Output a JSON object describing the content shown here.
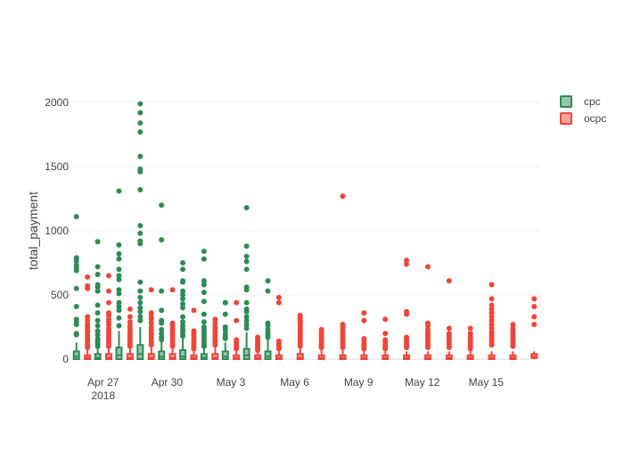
{
  "chart_data": {
    "type": "box",
    "title": "",
    "xlabel": "",
    "ylabel": "total_payment",
    "ylim": [
      0,
      2100
    ],
    "y_ticks": [
      0,
      500,
      1000,
      1500,
      2000
    ],
    "x_ticks": [
      {
        "date": "2018-04-27",
        "label": "Apr 27",
        "label2": "2018"
      },
      {
        "date": "2018-04-30",
        "label": "Apr 30",
        "label2": ""
      },
      {
        "date": "2018-05-03",
        "label": "May 3",
        "label2": ""
      },
      {
        "date": "2018-05-06",
        "label": "May 6",
        "label2": ""
      },
      {
        "date": "2018-05-09",
        "label": "May 9",
        "label2": ""
      },
      {
        "date": "2018-05-12",
        "label": "May 12",
        "label2": ""
      },
      {
        "date": "2018-05-15",
        "label": "May 15",
        "label2": ""
      }
    ],
    "x_range": [
      "2018-04-26",
      "2018-05-17"
    ],
    "grid": true,
    "legend_placement": "top-right",
    "series": [
      {
        "name": "cpc",
        "color": "#2e8b57",
        "boxes": [
          {
            "date": "2018-04-26",
            "q1": 0,
            "median": 20,
            "q3": 60,
            "whisker_low": 0,
            "whisker_high": 130,
            "outliers": [
              1110,
              790,
              780,
              760,
              730,
              710,
              690,
              550,
              410,
              310,
              290,
              270,
              200,
              190
            ]
          },
          {
            "date": "2018-04-27",
            "q1": 0,
            "median": 10,
            "q3": 40,
            "whisker_low": 0,
            "whisker_high": 90,
            "outliers": [
              915,
              720,
              660,
              580,
              560,
              530,
              420,
              360,
              300,
              260,
              220,
              190,
              160,
              140,
              120,
              100
            ]
          },
          {
            "date": "2018-04-28",
            "q1": 0,
            "median": 30,
            "q3": 90,
            "whisker_low": 0,
            "whisker_high": 220,
            "outliers": [
              1310,
              890,
              820,
              780,
              700,
              650,
              620,
              540,
              510,
              440,
              410,
              380,
              320,
              260
            ]
          },
          {
            "date": "2018-04-29",
            "q1": 0,
            "median": 40,
            "q3": 110,
            "whisker_low": 0,
            "whisker_high": 250,
            "outliers": [
              1990,
              1920,
              1840,
              1770,
              1580,
              1480,
              1460,
              1320,
              1040,
              980,
              920,
              900,
              600,
              530,
              480,
              440,
              400,
              370,
              330,
              300
            ]
          },
          {
            "date": "2018-04-30",
            "q1": 0,
            "median": 20,
            "q3": 60,
            "whisker_low": 0,
            "whisker_high": 140,
            "outliers": [
              1200,
              930,
              530,
              380,
              300,
              280,
              230,
              200,
              170,
              150
            ]
          },
          {
            "date": "2018-05-01",
            "q1": 0,
            "median": 20,
            "q3": 70,
            "whisker_low": 0,
            "whisker_high": 160,
            "outliers": [
              750,
              700,
              610,
              600,
              530,
              500,
              470,
              430,
              400,
              330,
              290,
              260,
              240,
              220,
              200,
              180
            ]
          },
          {
            "date": "2018-05-02",
            "q1": 0,
            "median": 10,
            "q3": 40,
            "whisker_low": 0,
            "whisker_high": 90,
            "outliers": [
              840,
              780,
              610,
              580,
              520,
              450,
              350,
              290,
              250,
              230,
              210,
              190,
              170,
              150,
              130,
              110,
              100
            ]
          },
          {
            "date": "2018-05-03",
            "q1": 0,
            "median": 20,
            "q3": 60,
            "whisker_low": 0,
            "whisker_high": 130,
            "outliers": [
              440,
              440,
              350,
              250,
              230,
              200,
              180,
              160
            ]
          },
          {
            "date": "2018-05-04",
            "q1": 0,
            "median": 30,
            "q3": 80,
            "whisker_low": 0,
            "whisker_high": 210,
            "outliers": [
              1180,
              880,
              800,
              760,
              700,
              560,
              540,
              440,
              390,
              370,
              330,
              300,
              270,
              240
            ]
          },
          {
            "date": "2018-05-05",
            "q1": 0,
            "median": 20,
            "q3": 60,
            "whisker_low": 0,
            "whisker_high": 150,
            "outliers": [
              610,
              530,
              280,
              260,
              230,
              210,
              190,
              170
            ]
          }
        ]
      },
      {
        "name": "ocpc",
        "color": "#f0453a",
        "boxes": [
          {
            "date": "2018-04-26",
            "q1": 0,
            "median": 10,
            "q3": 30,
            "whisker_low": 0,
            "whisker_high": 70,
            "outliers": [
              640,
              570,
              550,
              330,
              300,
              270,
              250,
              230,
              210,
              190,
              170,
              150,
              130,
              110,
              90
            ]
          },
          {
            "date": "2018-04-27",
            "q1": 0,
            "median": 10,
            "q3": 40,
            "whisker_low": 0,
            "whisker_high": 80,
            "outliers": [
              650,
              530,
              440,
              360,
              340,
              310,
              290,
              270,
              240,
              220,
              200,
              180,
              160,
              140,
              120,
              100
            ]
          },
          {
            "date": "2018-04-28",
            "q1": 0,
            "median": 10,
            "q3": 40,
            "whisker_low": 0,
            "whisker_high": 90,
            "outliers": [
              390,
              330,
              290,
              260,
              240,
              220,
              200,
              180,
              160,
              140,
              120,
              100
            ]
          },
          {
            "date": "2018-04-29",
            "q1": 0,
            "median": 10,
            "q3": 40,
            "whisker_low": 0,
            "whisker_high": 90,
            "outliers": [
              540,
              360,
              330,
              310,
              280,
              250,
              230,
              210,
              190,
              170,
              150,
              130,
              110
            ]
          },
          {
            "date": "2018-04-30",
            "q1": 0,
            "median": 10,
            "q3": 40,
            "whisker_low": 0,
            "whisker_high": 80,
            "outliers": [
              540,
              280,
              260,
              240,
              220,
              200,
              180,
              160,
              140,
              120,
              100
            ]
          },
          {
            "date": "2018-05-01",
            "q1": 0,
            "median": 10,
            "q3": 30,
            "whisker_low": 0,
            "whisker_high": 60,
            "outliers": [
              380,
              220,
              200,
              180,
              160,
              140,
              120,
              100,
              80
            ]
          },
          {
            "date": "2018-05-02",
            "q1": 0,
            "median": 10,
            "q3": 40,
            "whisker_low": 0,
            "whisker_high": 90,
            "outliers": [
              310,
              280,
              250,
              230,
              210,
              190,
              170,
              150,
              130,
              110
            ]
          },
          {
            "date": "2018-05-03",
            "q1": 0,
            "median": 10,
            "q3": 30,
            "whisker_low": 0,
            "whisker_high": 60,
            "outliers": [
              440,
              300,
              150,
              130,
              110,
              90,
              80
            ]
          },
          {
            "date": "2018-05-04",
            "q1": 0,
            "median": 10,
            "q3": 30,
            "whisker_low": 0,
            "whisker_high": 60,
            "outliers": [
              170,
              150,
              130,
              110,
              90,
              80,
              70
            ]
          },
          {
            "date": "2018-05-05",
            "q1": 0,
            "median": 10,
            "q3": 30,
            "whisker_low": 0,
            "whisker_high": 60,
            "outliers": [
              480,
              440,
              140,
              120,
              100,
              90,
              80
            ]
          },
          {
            "date": "2018-05-06",
            "q1": 0,
            "median": 10,
            "q3": 40,
            "whisker_low": 0,
            "whisker_high": 80,
            "outliers": [
              340,
              320,
              300,
              280,
              260,
              240,
              220,
              200,
              180,
              160,
              140,
              120,
              100
            ]
          },
          {
            "date": "2018-05-07",
            "q1": 0,
            "median": 10,
            "q3": 30,
            "whisker_low": 0,
            "whisker_high": 70,
            "outliers": [
              230,
              210,
              190,
              170,
              150,
              130,
              110,
              100,
              90
            ]
          },
          {
            "date": "2018-05-08",
            "q1": 0,
            "median": 10,
            "q3": 30,
            "whisker_low": 0,
            "whisker_high": 70,
            "outliers": [
              1270,
              270,
              250,
              230,
              210,
              190,
              170,
              150,
              130,
              110,
              90
            ]
          },
          {
            "date": "2018-05-09",
            "q1": 0,
            "median": 10,
            "q3": 30,
            "whisker_low": 0,
            "whisker_high": 60,
            "outliers": [
              360,
              300,
              160,
              140,
              120,
              100,
              90,
              80
            ]
          },
          {
            "date": "2018-05-10",
            "q1": 0,
            "median": 10,
            "q3": 30,
            "whisker_low": 0,
            "whisker_high": 60,
            "outliers": [
              310,
              200,
              150,
              130,
              110,
              100,
              90,
              80
            ]
          },
          {
            "date": "2018-05-11",
            "q1": 0,
            "median": 10,
            "q3": 30,
            "whisker_low": 0,
            "whisker_high": 60,
            "outliers": [
              770,
              740,
              370,
              350,
              170,
              150,
              130,
              110,
              100,
              90
            ]
          },
          {
            "date": "2018-05-12",
            "q1": 0,
            "median": 10,
            "q3": 30,
            "whisker_low": 0,
            "whisker_high": 60,
            "outliers": [
              720,
              280,
              260,
              230,
              210,
              190,
              170,
              150,
              130,
              110,
              90
            ]
          },
          {
            "date": "2018-05-13",
            "q1": 0,
            "median": 10,
            "q3": 30,
            "whisker_low": 0,
            "whisker_high": 60,
            "outliers": [
              610,
              240,
              200,
              180,
              160,
              140,
              120,
              100,
              90
            ]
          },
          {
            "date": "2018-05-14",
            "q1": 0,
            "median": 10,
            "q3": 30,
            "whisker_low": 0,
            "whisker_high": 60,
            "outliers": [
              240,
              200,
              180,
              160,
              140,
              120,
              100,
              90,
              80
            ]
          },
          {
            "date": "2018-05-15",
            "q1": 0,
            "median": 10,
            "q3": 30,
            "whisker_low": 0,
            "whisker_high": 60,
            "outliers": [
              580,
              470,
              420,
              390,
              360,
              330,
              300,
              270,
              240,
              210,
              190,
              170,
              150,
              130,
              110
            ]
          },
          {
            "date": "2018-05-16",
            "q1": 0,
            "median": 10,
            "q3": 30,
            "whisker_low": 0,
            "whisker_high": 60,
            "outliers": [
              270,
              240,
              220,
              200,
              180,
              160,
              140,
              120,
              100
            ]
          },
          {
            "date": "2018-05-17",
            "q1": 10,
            "median": 20,
            "q3": 40,
            "whisker_low": 0,
            "whisker_high": 60,
            "outliers": [
              470,
              410,
              330,
              270
            ]
          }
        ]
      }
    ]
  }
}
